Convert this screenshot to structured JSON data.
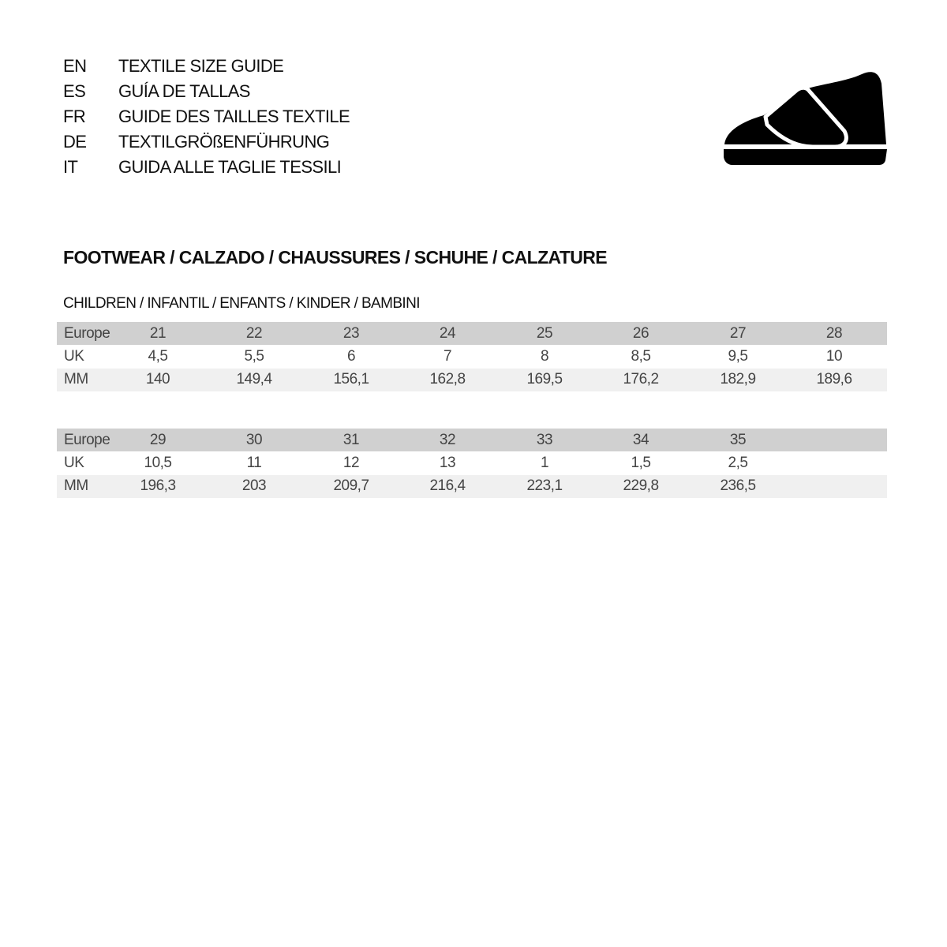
{
  "guide_titles": [
    {
      "code": "EN",
      "title": "TEXTILE SIZE GUIDE"
    },
    {
      "code": "ES",
      "title": "GUÍA DE TALLAS"
    },
    {
      "code": "FR",
      "title": "GUIDE DES TAILLES TEXTILE"
    },
    {
      "code": "DE",
      "title": "TEXTILGRÖßENFÜHRUNG"
    },
    {
      "code": "IT",
      "title": "GUIDA ALLE TAGLIE TESSILI"
    }
  ],
  "icon": "shoe-icon",
  "section_title": "FOOTWEAR / CALZADO / CHAUSSURES / SCHUHE / CALZATURE",
  "subsection_title": "CHILDREN / INFANTIL / ENFANTS / KINDER / BAMBINI",
  "tables": [
    {
      "rows": [
        {
          "label": "Europe",
          "values": [
            "21",
            "22",
            "23",
            "24",
            "25",
            "26",
            "27",
            "28"
          ]
        },
        {
          "label": "UK",
          "values": [
            "4,5",
            "5,5",
            "6",
            "7",
            "8",
            "8,5",
            "9,5",
            "10"
          ]
        },
        {
          "label": "MM",
          "values": [
            "140",
            "149,4",
            "156,1",
            "162,8",
            "169,5",
            "176,2",
            "182,9",
            "189,6"
          ]
        }
      ]
    },
    {
      "rows": [
        {
          "label": "Europe",
          "values": [
            "29",
            "30",
            "31",
            "32",
            "33",
            "34",
            "35"
          ]
        },
        {
          "label": "UK",
          "values": [
            "10,5",
            "11",
            "12",
            "13",
            "1",
            "1,5",
            "2,5"
          ]
        },
        {
          "label": "MM",
          "values": [
            "196,3",
            "203",
            "209,7",
            "216,4",
            "223,1",
            "229,8",
            "236,5"
          ]
        }
      ]
    }
  ]
}
